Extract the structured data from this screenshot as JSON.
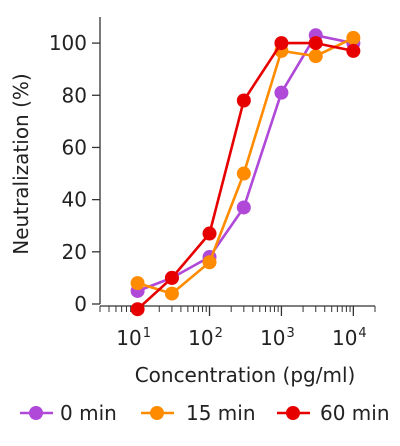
{
  "chart_data": {
    "type": "line",
    "title": "",
    "xlabel": "Concentration (pg/ml)",
    "ylabel": "Neutralization (%)",
    "xscale": "log",
    "xlim": [
      3,
      20000
    ],
    "ylim": [
      0,
      110
    ],
    "x_ticks": [
      {
        "value": 10,
        "base": "10",
        "exp": "1"
      },
      {
        "value": 100,
        "base": "10",
        "exp": "2"
      },
      {
        "value": 1000,
        "base": "10",
        "exp": "3"
      },
      {
        "value": 10000,
        "base": "10",
        "exp": "4"
      }
    ],
    "y_ticks": [
      {
        "value": 0,
        "label": "0"
      },
      {
        "value": 20,
        "label": "20"
      },
      {
        "value": 40,
        "label": "40"
      },
      {
        "value": 60,
        "label": "60"
      },
      {
        "value": 80,
        "label": "80"
      },
      {
        "value": 100,
        "label": "100"
      }
    ],
    "grid": false,
    "legend_position": "bottom",
    "series": [
      {
        "name": "0 min",
        "color": "#b048d8",
        "points": [
          {
            "x": 10,
            "y": 5
          },
          {
            "x": 30,
            "y": 10
          },
          {
            "x": 100,
            "y": 18
          },
          {
            "x": 300,
            "y": 37
          },
          {
            "x": 1000,
            "y": 81
          },
          {
            "x": 3000,
            "y": 103
          },
          {
            "x": 10000,
            "y": 100
          }
        ]
      },
      {
        "name": "15 min",
        "color": "#ff8c00",
        "points": [
          {
            "x": 10,
            "y": 8
          },
          {
            "x": 30,
            "y": 4
          },
          {
            "x": 100,
            "y": 16
          },
          {
            "x": 300,
            "y": 50
          },
          {
            "x": 1000,
            "y": 97
          },
          {
            "x": 3000,
            "y": 95
          },
          {
            "x": 10000,
            "y": 102
          }
        ]
      },
      {
        "name": "60 min",
        "color": "#e60000",
        "points": [
          {
            "x": 10,
            "y": -2
          },
          {
            "x": 30,
            "y": 10
          },
          {
            "x": 100,
            "y": 27
          },
          {
            "x": 300,
            "y": 78
          },
          {
            "x": 1000,
            "y": 100
          },
          {
            "x": 3000,
            "y": 100
          },
          {
            "x": 10000,
            "y": 97
          }
        ]
      }
    ]
  }
}
